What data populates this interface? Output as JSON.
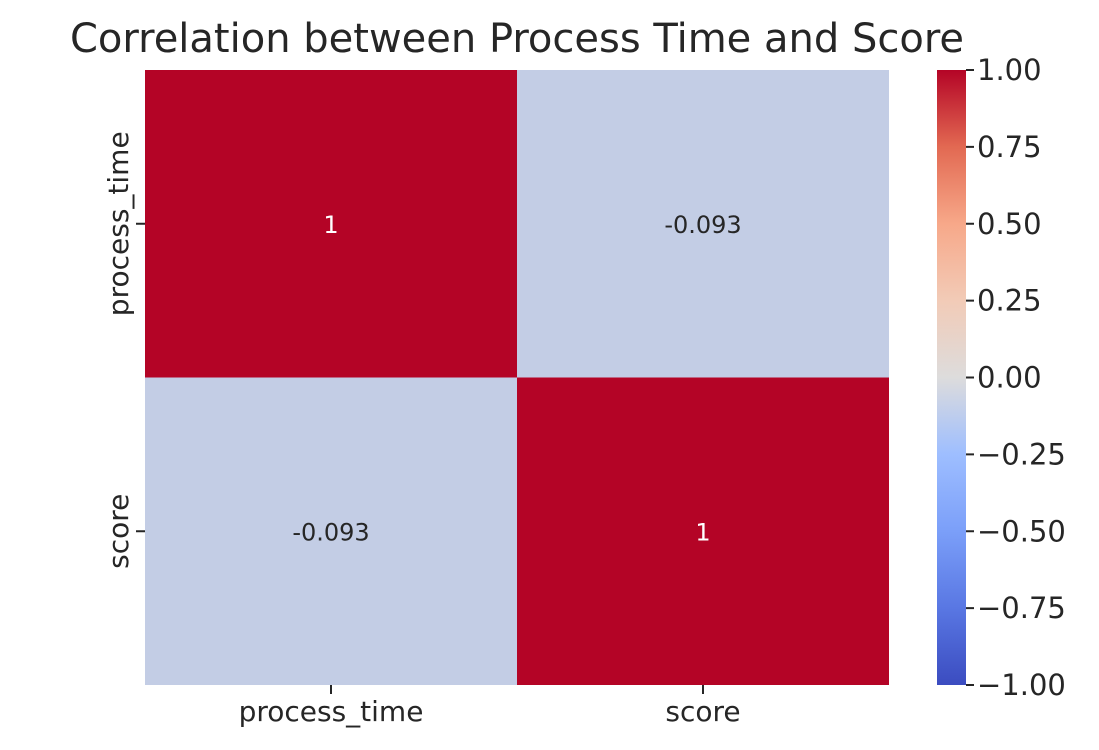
{
  "chart_data": {
    "type": "heatmap",
    "title": "Correlation between Process Time and Score",
    "x_categories": [
      "process_time",
      "score"
    ],
    "y_categories": [
      "process_time",
      "score"
    ],
    "values": [
      [
        1,
        -0.093
      ],
      [
        -0.093,
        1
      ]
    ],
    "cell_labels": [
      [
        "1",
        "-0.093"
      ],
      [
        "-0.093",
        "1"
      ]
    ],
    "colormap": "coolwarm",
    "vmin": -1.0,
    "vmax": 1.0,
    "colorbar_ticks": [
      1.0,
      0.75,
      0.5,
      0.25,
      0.0,
      -0.25,
      -0.5,
      -0.75,
      -1.0
    ],
    "colorbar_tick_labels": [
      "1.00",
      "0.75",
      "0.50",
      "0.25",
      "0.00",
      "−0.25",
      "−0.50",
      "−0.75",
      "−1.00"
    ],
    "colors": {
      "high": "#b40426",
      "near_zero": "#d1dae9",
      "low": "#3b4cc0",
      "text": "#262626"
    }
  }
}
